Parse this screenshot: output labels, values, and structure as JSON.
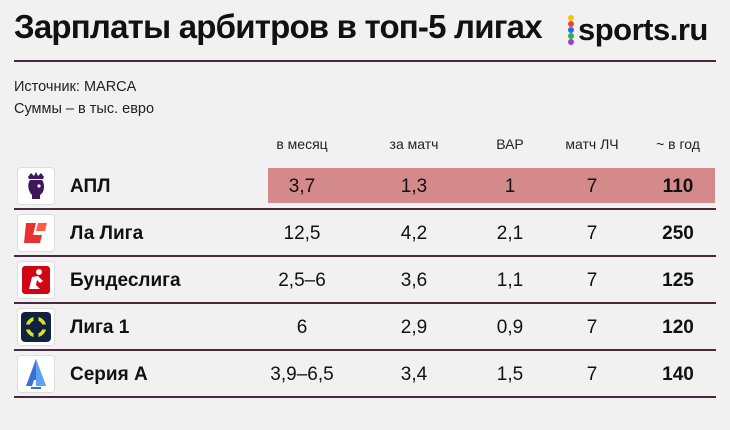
{
  "header": {
    "title": "Зарплаты арбитров в топ-5 лигах",
    "brand": "sports.ru",
    "brand_dot_colors": [
      "#f7c600",
      "#e8443a",
      "#2f6be7",
      "#2cb34a",
      "#9b3fd6"
    ]
  },
  "notes": {
    "source": "Источник: MARCA",
    "units": "Суммы – в тыс. евро"
  },
  "colors": {
    "rule": "#4b2842",
    "highlight": "#d48a8a",
    "background": "#f1f1f1"
  },
  "chart_data": {
    "type": "table",
    "columns": [
      "в месяц",
      "за матч",
      "ВАР",
      "матч ЛЧ",
      "~ в год"
    ],
    "rows": [
      {
        "league": "АПЛ",
        "logo": "premier-league-lion-icon",
        "values": [
          "3,7",
          "1,3",
          "1",
          "7",
          "110"
        ],
        "highlighted": true
      },
      {
        "league": "Ла Лига",
        "logo": "laliga-logo-icon",
        "values": [
          "12,5",
          "4,2",
          "2,1",
          "7",
          "250"
        ],
        "highlighted": false
      },
      {
        "league": "Бундеслига",
        "logo": "bundesliga-logo-icon",
        "values": [
          "2,5–6",
          "3,6",
          "1,1",
          "7",
          "125"
        ],
        "highlighted": false
      },
      {
        "league": "Лига 1",
        "logo": "ligue1-logo-icon",
        "values": [
          "6",
          "2,9",
          "0,9",
          "7",
          "120"
        ],
        "highlighted": false
      },
      {
        "league": "Серия А",
        "logo": "serie-a-logo-icon",
        "values": [
          "3,9–6,5",
          "3,4",
          "1,5",
          "7",
          "140"
        ],
        "highlighted": false
      }
    ]
  }
}
